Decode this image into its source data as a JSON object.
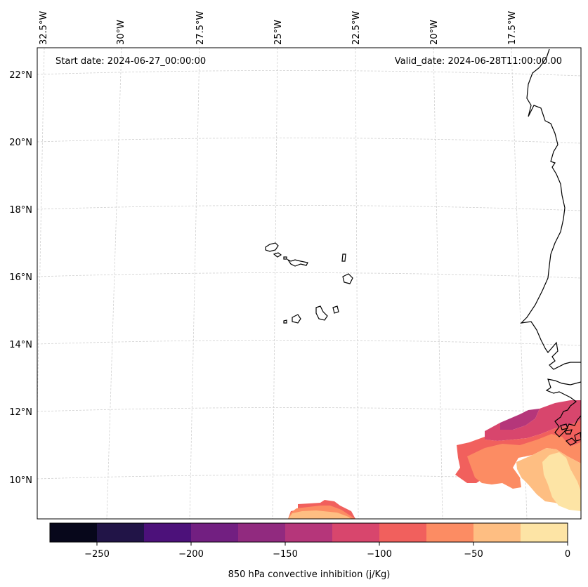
{
  "map": {
    "start_label": "Start date: 2024-06-27_00:00:00",
    "valid_label": "Valid_date: 2024-06-28T11:00:00.00",
    "lon_labels": [
      "32.5°W",
      "30°W",
      "27.5°W",
      "25°W",
      "22.5°W",
      "20°W",
      "17.5°W"
    ],
    "lat_labels": [
      "22°N",
      "20°N",
      "18°N",
      "16°N",
      "14°N",
      "12°N",
      "10°N"
    ]
  },
  "colorbar": {
    "label": "850 hPa convective inhibition (j/Kg)",
    "ticks": [
      "−250",
      "−200",
      "−150",
      "−100",
      "−50",
      "0"
    ],
    "levels": [
      -275,
      -250,
      -225,
      -200,
      -175,
      -150,
      -125,
      -100,
      -75,
      -50,
      -25,
      0
    ],
    "colors": [
      "#07071b",
      "#211447",
      "#4c117a",
      "#721f81",
      "#912a7f",
      "#b5367a",
      "#d8466d",
      "#f1605d",
      "#fc8c63",
      "#febe82",
      "#fde4a5"
    ]
  },
  "fields": {
    "level_colors": {
      "c_minus_150_125": "#b5367a",
      "c_minus_125_100": "#d8466d",
      "c_minus_100_75": "#f1605d",
      "c_minus_75_50": "#fc8c63",
      "c_minus_50_25": "#febe82",
      "c_minus_25_0": "#fde4a5"
    }
  }
}
